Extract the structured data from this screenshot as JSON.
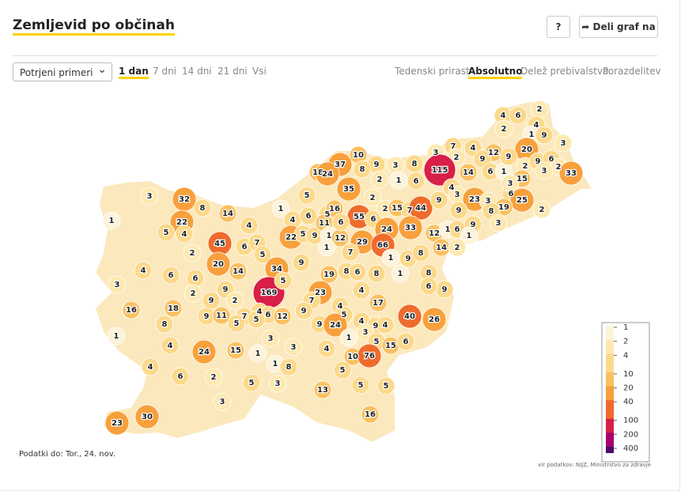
{
  "header": {
    "title": "Zemljevid po občinah",
    "help": "?",
    "share": "Deli graf na"
  },
  "controls": {
    "select": "Potrjeni primeri",
    "periods": [
      "1 dan",
      "7 dni",
      "14 dni",
      "21 dni",
      "Vsi"
    ],
    "views": [
      "Tedenski prirast",
      "Absolutno",
      "Delež prebivalstva",
      "Porazdelitev"
    ]
  },
  "map": {
    "values": [
      2,
      4,
      6,
      4,
      1,
      2,
      9,
      7,
      4,
      3,
      2,
      12,
      20,
      9,
      10,
      9,
      3,
      8,
      115,
      14,
      6,
      1,
      9,
      2,
      9,
      6,
      2,
      3,
      33,
      37,
      8,
      18,
      24,
      35,
      2,
      1,
      6,
      15,
      4,
      3,
      3,
      6,
      3,
      23,
      3,
      25,
      19,
      8,
      2,
      3,
      32,
      8,
      14,
      22,
      4,
      1,
      5,
      1,
      4,
      6,
      5,
      16,
      55,
      6,
      2,
      2,
      15,
      7,
      44,
      9,
      9,
      5,
      4,
      45,
      6,
      7,
      5,
      22,
      5,
      9,
      11,
      1,
      12,
      6,
      24,
      33,
      12,
      1,
      6,
      9,
      3,
      1,
      29,
      66,
      14,
      2,
      2,
      20,
      14,
      34,
      1,
      7,
      1,
      9,
      8,
      9,
      19,
      8,
      6,
      8,
      1,
      8,
      4,
      6,
      6,
      3,
      169,
      5,
      23,
      7,
      4,
      9,
      6,
      2,
      9,
      9,
      2,
      17,
      16,
      18,
      4,
      5,
      4,
      6,
      40,
      26,
      9,
      11,
      7,
      12,
      9,
      9,
      24,
      4,
      9,
      4,
      5,
      5,
      8,
      1,
      3,
      3,
      4,
      3,
      4,
      1,
      5,
      15,
      6,
      24,
      15,
      1,
      10,
      76,
      1,
      8,
      4,
      5,
      6,
      2,
      5,
      3,
      5,
      5,
      13,
      3,
      30,
      16,
      23
    ]
  },
  "legend": {
    "ticks": [
      1,
      2,
      4,
      10,
      20,
      40,
      100,
      200,
      400
    ]
  },
  "footer": {
    "date": "Podatki do: Tor., 24. nov.",
    "source": "vir podatkov: NIJZ, Ministrstvo za zdravje"
  }
}
